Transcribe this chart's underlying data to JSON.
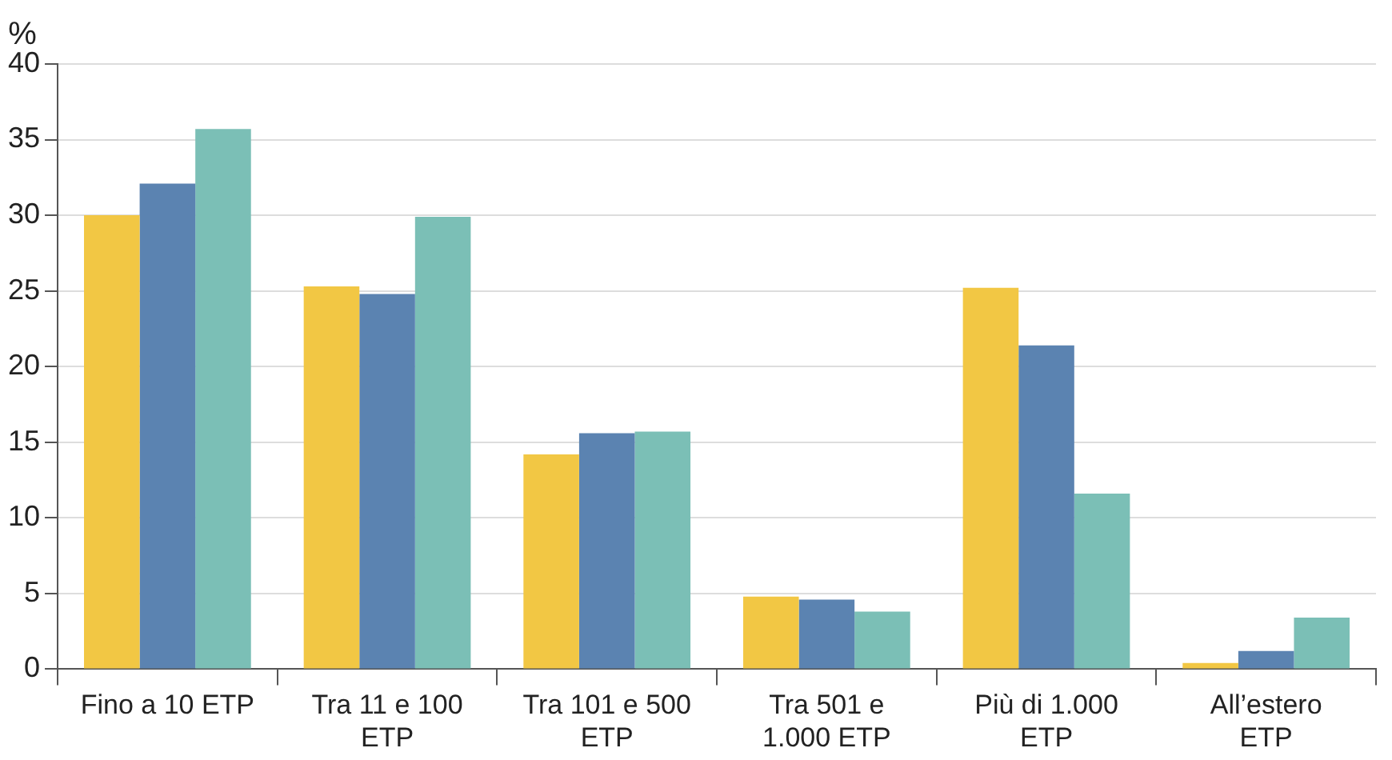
{
  "chart_data": {
    "type": "bar",
    "ylabel": "%",
    "categories": [
      "Fino a 10 ETP",
      "Tra 11 e 100 ETP",
      "Tra 101 e 500 ETP",
      "Tra 501 e 1.000 ETP",
      "Più di 1.000 ETP",
      "All’estero ETP"
    ],
    "series": [
      {
        "color": "#f2c744",
        "values": [
          30,
          25.3,
          14.2,
          4.8,
          25.2,
          0.4
        ]
      },
      {
        "color": "#5b83b1",
        "values": [
          32.1,
          24.8,
          15.6,
          4.6,
          21.4,
          1.2
        ]
      },
      {
        "color": "#7bbfb6",
        "values": [
          35.7,
          29.9,
          15.7,
          3.8,
          11.6,
          3.4
        ]
      }
    ],
    "ylim": [
      0,
      40
    ],
    "yticks": [
      0,
      5,
      10,
      15,
      20,
      25,
      30,
      35,
      40
    ],
    "grid": "y",
    "legend": false
  }
}
